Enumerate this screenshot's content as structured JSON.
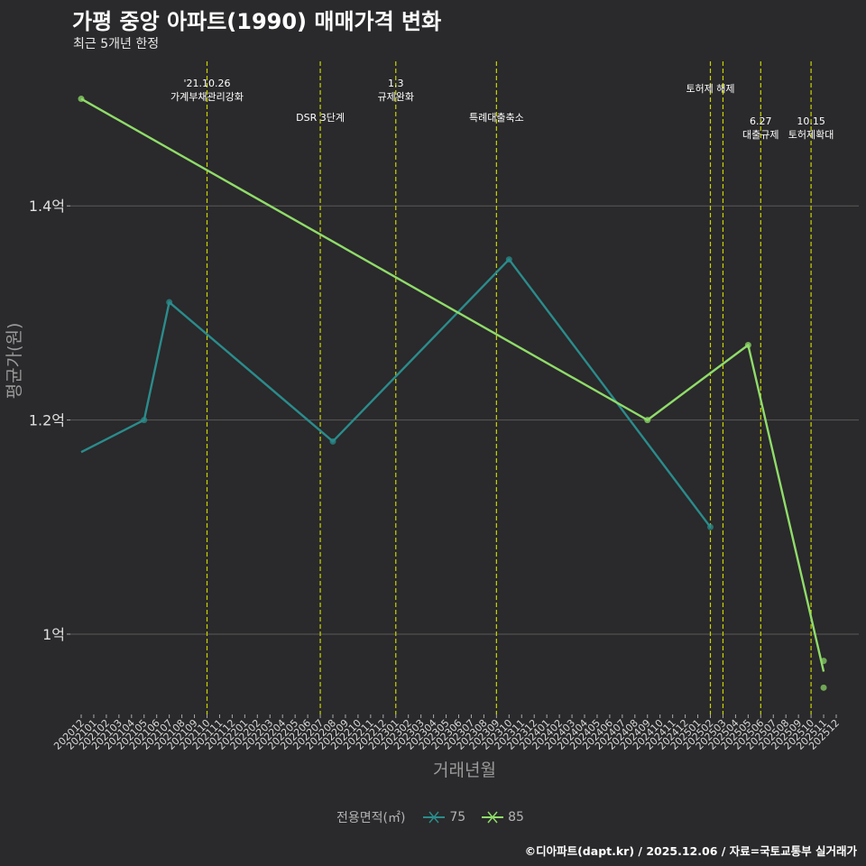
{
  "header": {
    "title": "가평 중앙 아파트(1990) 매매가격 변화",
    "subtitle": "최근 5개년 한정"
  },
  "footer": {
    "caption": "©디아파트(dapt.kr) / 2025.12.06 / 자료=국토교통부 실거래가"
  },
  "colors": {
    "background": "#2a292b",
    "grid": "#5a5a5a",
    "event_line": "#c8d400",
    "series_75": "#2a8c8c",
    "series_85": "#8fdc6a"
  },
  "chart_data": {
    "type": "line",
    "xlabel": "거래년월",
    "ylabel": "평균가(원)",
    "ylim": [
      0.925,
      1.535
    ],
    "yticks": [
      {
        "value": 1.0,
        "label": "1억"
      },
      {
        "value": 1.2,
        "label": "1.2억"
      },
      {
        "value": 1.4,
        "label": "1.4억"
      }
    ],
    "categories": [
      "202012",
      "202101",
      "202102",
      "202103",
      "202104",
      "202105",
      "202106",
      "202107",
      "202108",
      "202109",
      "202110",
      "202111",
      "202112",
      "202201",
      "202202",
      "202203",
      "202204",
      "202205",
      "202206",
      "202207",
      "202208",
      "202209",
      "202210",
      "202211",
      "202212",
      "202301",
      "202302",
      "202303",
      "202304",
      "202305",
      "202306",
      "202307",
      "202308",
      "202309",
      "202310",
      "202311",
      "202312",
      "202401",
      "202402",
      "202403",
      "202404",
      "202405",
      "202406",
      "202407",
      "202408",
      "202409",
      "202410",
      "202411",
      "202412",
      "202501",
      "202502",
      "202503",
      "202504",
      "202505",
      "202506",
      "202507",
      "202508",
      "202509",
      "202510",
      "202511",
      "202512"
    ],
    "legend_title": "전용면적(㎡)",
    "series": [
      {
        "name": "75",
        "color": "#2a8c8c",
        "points": [
          {
            "x": "202012",
            "y": 1.17,
            "marker": false
          },
          {
            "x": "202105",
            "y": 1.2,
            "marker": true
          },
          {
            "x": "202107",
            "y": 1.31,
            "marker": true
          },
          {
            "x": "202208",
            "y": 1.18,
            "marker": true
          },
          {
            "x": "202310",
            "y": 1.35,
            "marker": true
          },
          {
            "x": "202502",
            "y": 1.1,
            "marker": true
          }
        ]
      },
      {
        "name": "85",
        "color": "#8fdc6a",
        "points": [
          {
            "x": "202012",
            "y": 1.5,
            "marker": true
          },
          {
            "x": "202409",
            "y": 1.2,
            "marker": true
          },
          {
            "x": "202505",
            "y": 1.27,
            "marker": true
          },
          {
            "x": "202511",
            "y": 0.965,
            "marker": false
          }
        ],
        "extra_markers": [
          {
            "x": "202511",
            "y": 0.975
          },
          {
            "x": "202511",
            "y": 0.95
          }
        ]
      }
    ],
    "events": [
      {
        "x": "202110",
        "lines": [
          "'21.10.26",
          "가계부채관리강화"
        ],
        "row": 0
      },
      {
        "x": "202207",
        "lines": [
          "DSR 3단계"
        ],
        "row": 1
      },
      {
        "x": "202301",
        "lines": [
          "1.3",
          "규제완화"
        ],
        "row": 0
      },
      {
        "x": "202309",
        "lines": [
          "특례대출축소"
        ],
        "row": 1
      },
      {
        "x": "202502",
        "lines": [
          "토허제 해제"
        ],
        "row": 0
      },
      {
        "x": "202503",
        "lines": [],
        "row": 0
      },
      {
        "x": "202506",
        "lines": [
          "6.27",
          "대출규제"
        ],
        "row": 1
      },
      {
        "x": "202510",
        "lines": [
          "10.15",
          "토허제확대"
        ],
        "row": 1
      }
    ]
  }
}
